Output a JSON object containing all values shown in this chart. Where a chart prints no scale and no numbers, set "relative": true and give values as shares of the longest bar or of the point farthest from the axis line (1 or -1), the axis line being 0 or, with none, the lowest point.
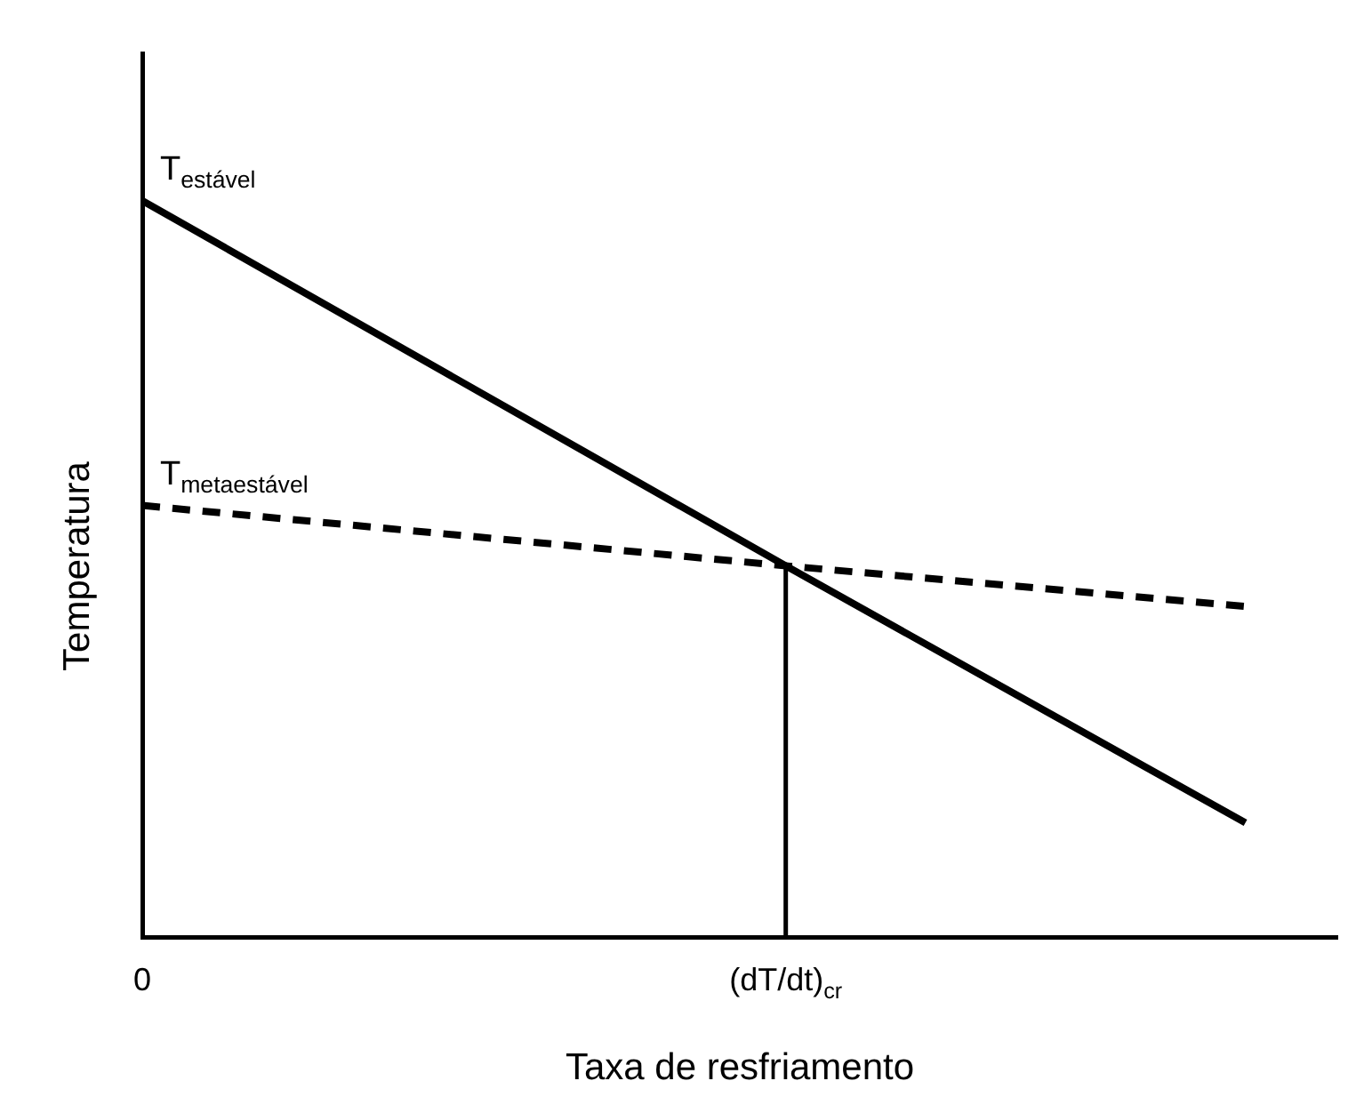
{
  "chart_data": {
    "type": "line",
    "relative": true,
    "xlabel": "Taxa de resfriamento",
    "ylabel": "Temperatura",
    "categories": [
      "0",
      null,
      null,
      null,
      null,
      null,
      null,
      "(dT/dt)$_{cr}$",
      null,
      null,
      null,
      null,
      null,
      null
    ],
    "grid": false,
    "legend": false,
    "marker": "none",
    "series": [
      {
        "name": "T$_{estável}$",
        "color": "#000000",
        "line_style": "solid",
        "values": [
          1,
          null,
          null,
          null,
          null,
          null,
          null,
          0.504,
          null,
          null,
          null,
          null,
          0.155,
          null
        ]
      },
      {
        "name": "T$_{metaestável}$",
        "color": "#000000",
        "line_style": "dashed",
        "values": [
          0.586,
          null,
          null,
          null,
          null,
          null,
          null,
          0.504,
          null,
          null,
          null,
          null,
          0.449,
          null
        ]
      }
    ],
    "ref_lines": [
      {
        "axis": "x",
        "value": "(dT/dt)$_{cr}$",
        "color": "#000000",
        "line_style": "solid"
      }
    ]
  }
}
